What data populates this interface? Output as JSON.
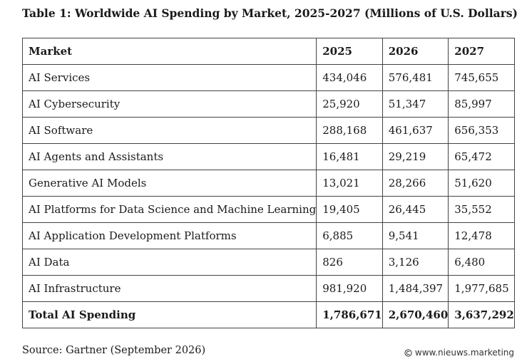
{
  "title": "Table 1: Worldwide AI Spending by Market, 2025-2027 (Millions of U.S. Dollars)",
  "table": {
    "headers": [
      "Market",
      "2025",
      "2026",
      "2027"
    ],
    "rows": [
      [
        "AI Services",
        "434,046",
        "576,481",
        "745,655"
      ],
      [
        "AI Cybersecurity",
        "25,920",
        "51,347",
        "85,997"
      ],
      [
        "AI Software",
        "288,168",
        "461,637",
        "656,353"
      ],
      [
        "AI Agents and Assistants",
        "16,481",
        "29,219",
        "65,472"
      ],
      [
        "Generative AI Models",
        "13,021",
        "28,266",
        "51,620"
      ],
      [
        "AI Platforms for Data Science and Machine Learning",
        "19,405",
        "26,445",
        "35,552"
      ],
      [
        "AI Application Development Platforms",
        "6,885",
        "9,541",
        "12,478"
      ],
      [
        "AI Data",
        "826",
        "3,126",
        "6,480"
      ],
      [
        "AI Infrastructure",
        "981,920",
        "1,484,397",
        "1,977,685"
      ]
    ],
    "total": [
      "Total AI Spending",
      "1,786,671",
      "2,670,460",
      "3,637,292"
    ]
  },
  "source": "Source: Gartner (September 2026)",
  "watermark": {
    "text": "www.nieuws.marketing",
    "icon": "copyright-icon"
  }
}
